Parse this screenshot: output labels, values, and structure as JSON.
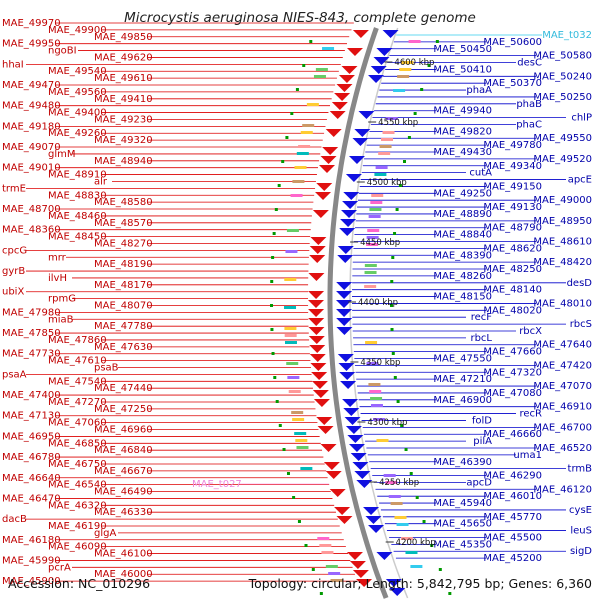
{
  "title": "Microcystis aeruginosa NIES-843, complete genome",
  "footer": {
    "accession": "Accession: NC_010296",
    "topology": "Topology: circular; Length: 5,842,795 bp; Genes: 6,360"
  },
  "ticks": [
    "4600 kbp",
    "4550 kbp",
    "4500 kbp",
    "4450 kbp",
    "4400 kbp",
    "4350 kbp",
    "4300 kbp",
    "4250 kbp",
    "4200 kbp"
  ],
  "left_labels": [
    "MAE_49970",
    "MAE_49900",
    "MAE_49850",
    "MAE_49950",
    "ngoBI",
    "MAE_49620",
    "hhaI",
    "MAE_49540",
    "MAE_49610",
    "MAE_49470",
    "MAE_49560",
    "MAE_49410",
    "MAE_49480",
    "MAE_49400",
    "MAE_49230",
    "MAE_49180",
    "MAE_49260",
    "MAE_49320",
    "MAE_49070",
    "glmM",
    "MAE_48940",
    "MAE_49010",
    "MAE_48910",
    "alr",
    "trmE",
    "MAE_48830",
    "MAE_48580",
    "MAE_48700",
    "MAE_48460",
    "MAE_48570",
    "MAE_48360",
    "MAE_48450",
    "MAE_48270",
    "cpcG",
    "mrr",
    "MAE_48190",
    "gyrB",
    "ilvH",
    "MAE_48170",
    "ubiX",
    "rpmG",
    "MAE_48070",
    "MAE_47980",
    "miaB",
    "MAE_47780",
    "MAE_47850",
    "MAE_47860",
    "MAE_47630",
    "MAE_47730",
    "MAE_47610",
    "psaB",
    "psaA",
    "MAE_47540",
    "MAE_47440",
    "MAE_47400",
    "MAE_47270",
    "MAE_47250",
    "MAE_47130",
    "MAE_47060",
    "MAE_46960",
    "MAE_46950",
    "MAE_46850",
    "MAE_46840",
    "MAE_46780",
    "MAE_46750",
    "MAE_46670",
    "MAE_46640",
    "MAE_46540",
    "MAE_46490",
    "MAE_46470",
    "MAE_46320",
    "MAE_46330",
    "dacB",
    "MAE_46190",
    "glgA",
    "MAE_46180",
    "MAE_46090",
    "MAE_46100",
    "MAE_45990",
    "pcrA",
    "MAE_46000",
    "MAE_45900"
  ],
  "pink_label": "MAE_t027",
  "right_labels": [
    "MAE_t032",
    "MAE_50600",
    "MAE_50450",
    "MAE_50580",
    "desC",
    "MAE_50410",
    "MAE_50240",
    "MAE_50370",
    "phaA",
    "MAE_50250",
    "phaB",
    "MAE_49940",
    "chlP",
    "phaC",
    "MAE_49820",
    "MAE_49550",
    "MAE_49780",
    "MAE_49430",
    "MAE_49520",
    "MAE_49340",
    "cutA",
    "apcE",
    "MAE_49150",
    "MAE_49250",
    "MAE_49000",
    "MAE_49130",
    "MAE_48890",
    "MAE_48950",
    "MAE_48790",
    "MAE_48840",
    "MAE_48610",
    "MAE_48620",
    "MAE_48390",
    "MAE_48420",
    "MAE_48250",
    "MAE_48260",
    "desD",
    "MAE_48140",
    "MAE_48150",
    "MAE_48010",
    "MAE_48020",
    "recF",
    "rbcS",
    "rbcX",
    "rbcL",
    "MAE_47640",
    "MAE_47660",
    "MAE_47550",
    "MAE_47420",
    "MAE_47320",
    "MAE_47210",
    "MAE_47070",
    "MAE_47080",
    "MAE_46900",
    "MAE_46910",
    "recR",
    "folD",
    "MAE_46700",
    "MAE_46660",
    "pilA",
    "MAE_46520",
    "uma1",
    "MAE_46390",
    "trmB",
    "MAE_46290",
    "apcD",
    "MAE_46120",
    "MAE_46010",
    "MAE_45940",
    "cysE",
    "MAE_45770",
    "MAE_45650",
    "leuS",
    "MAE_45500",
    "MAE_45350",
    "sigD",
    "MAE_45200"
  ],
  "colors": {
    "forward": "#e01010",
    "reverse": "#1010e0",
    "left_line": "#dd0000",
    "right_line": "#0000cc",
    "backbone": "#888888",
    "cyan": "#33ccee",
    "pink": "#ffaaee"
  }
}
